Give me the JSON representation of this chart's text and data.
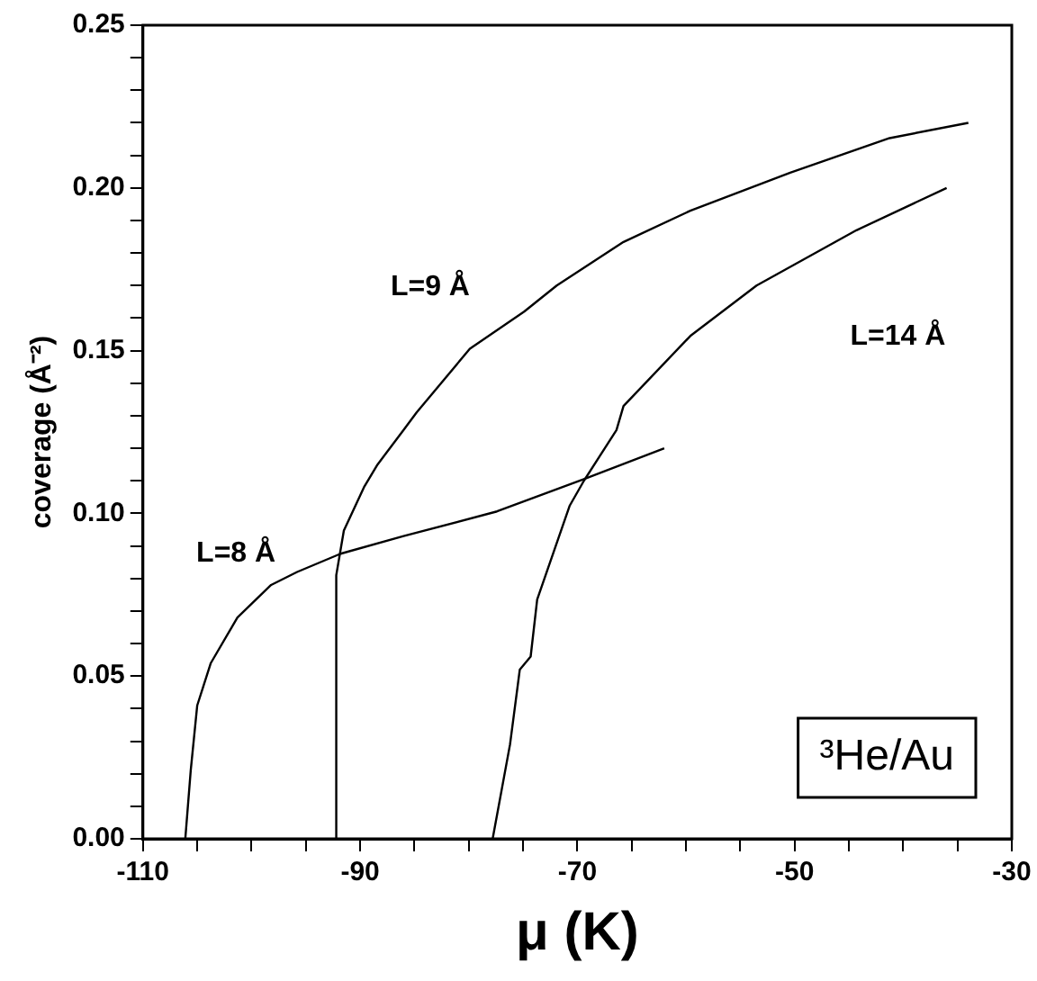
{
  "chart_data": {
    "type": "line",
    "xlabel": "μ (K)",
    "ylabel": "coverage (Å⁻²)",
    "xlim": [
      -110,
      -30
    ],
    "ylim": [
      0,
      0.25
    ],
    "xticks": [
      -110,
      {
        "value": -105,
        "label": null
      },
      {
        "value": -100,
        "label": null
      },
      {
        "value": -95,
        "label": null
      },
      -90,
      {
        "value": -85,
        "label": null
      },
      {
        "value": -80,
        "label": null
      },
      {
        "value": -75,
        "label": null
      },
      -70,
      {
        "value": -65,
        "label": null
      },
      {
        "value": -60,
        "label": null
      },
      {
        "value": -55,
        "label": null
      },
      -50,
      {
        "value": -45,
        "label": null
      },
      {
        "value": -40,
        "label": null
      },
      {
        "value": -35,
        "label": null
      },
      -30
    ],
    "yticks": [
      {
        "value": 0,
        "label": "0.00"
      },
      {
        "value": 0.01,
        "label": null
      },
      {
        "value": 0.02,
        "label": null
      },
      {
        "value": 0.03,
        "label": null
      },
      {
        "value": 0.04,
        "label": null
      },
      {
        "value": 0.05,
        "label": "0.05"
      },
      {
        "value": 0.06,
        "label": null
      },
      {
        "value": 0.07,
        "label": null
      },
      {
        "value": 0.08,
        "label": null
      },
      {
        "value": 0.09,
        "label": null
      },
      {
        "value": 0.1,
        "label": "0.10"
      },
      {
        "value": 0.11,
        "label": null
      },
      {
        "value": 0.12,
        "label": null
      },
      {
        "value": 0.13,
        "label": null
      },
      {
        "value": 0.14,
        "label": null
      },
      {
        "value": 0.15,
        "label": "0.15"
      },
      {
        "value": 0.16,
        "label": null
      },
      {
        "value": 0.17,
        "label": null
      },
      {
        "value": 0.18,
        "label": null
      },
      {
        "value": 0.19,
        "label": null
      },
      {
        "value": 0.2,
        "label": "0.20"
      },
      {
        "value": 0.21,
        "label": null
      },
      {
        "value": 0.22,
        "label": null
      },
      {
        "value": 0.23,
        "label": null
      },
      {
        "value": 0.24,
        "label": null
      },
      {
        "value": 0.25,
        "label": "0.25"
      }
    ],
    "grid": false,
    "legend": false,
    "marker": "none",
    "line_style": "solid",
    "series": [
      {
        "name": "L=8 Å",
        "color": "#000000",
        "x": [
          -106.1,
          -105.6,
          -105,
          -103.75,
          -101.3,
          -98.2,
          -95.8,
          -91.8,
          -86,
          -77.4,
          -69.4,
          -62
        ],
        "values": [
          0,
          0.021,
          0.041,
          0.054,
          0.068,
          0.078,
          0.082,
          0.0876,
          0.093,
          0.1006,
          0.1105,
          0.12
        ]
      },
      {
        "name": "L=9 Å",
        "color": "#000000",
        "x": [
          -92.2,
          -92.2,
          -91.5,
          -89.65,
          -88.4,
          -86,
          -84.8,
          -79.9,
          -74.9,
          -71.9,
          -65.75,
          -59.6,
          -50.4,
          -41.25,
          -34
        ],
        "values": [
          0,
          0.081,
          0.0947,
          0.108,
          0.115,
          0.1256,
          0.131,
          0.1506,
          0.162,
          0.17,
          0.1834,
          0.193,
          0.2047,
          0.2153,
          0.22
        ]
      },
      {
        "name": "L=14 Å",
        "color": "#000000",
        "x": [
          -77.8,
          -76.2,
          -75.3,
          -74.3,
          -73.7,
          -70.7,
          -69.4,
          -66.4,
          -65.75,
          -59.6,
          -53.5,
          -44.3,
          -36
        ],
        "values": [
          0,
          0.029,
          0.052,
          0.056,
          0.0735,
          0.1024,
          0.11,
          0.1256,
          0.133,
          0.1545,
          0.17,
          0.187,
          0.2
        ]
      }
    ],
    "annotations": [
      "³He/Au"
    ]
  }
}
